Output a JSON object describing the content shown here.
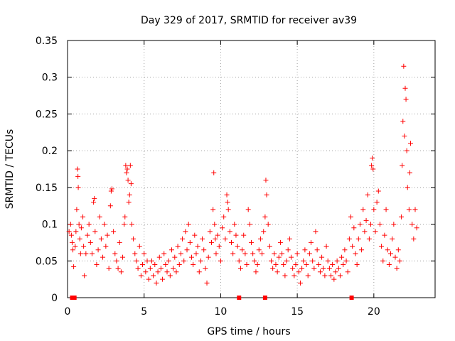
{
  "chart_data": {
    "type": "scatter",
    "title": "Day 329 of 2017, SRMTID for receiver av39",
    "xlabel": "GPS time / hours",
    "ylabel": "SRMTID / TECUs",
    "xlim": [
      0,
      24
    ],
    "ylim": [
      0,
      0.35
    ],
    "xticks": [
      0,
      5,
      10,
      15,
      20
    ],
    "xtick_labels": [
      "0",
      "5",
      "10",
      "15",
      "20"
    ],
    "yticks": [
      0,
      0.05,
      0.1,
      0.15,
      0.2,
      0.25,
      0.3,
      0.35
    ],
    "ytick_labels": [
      "0",
      "0.05",
      "0.1",
      "0.15",
      "0.2",
      "0.25",
      "0.3",
      "0.35"
    ],
    "grid": true,
    "marker": "+",
    "color": "#ff0000",
    "series": [
      {
        "name": "SRMTID",
        "points": [
          [
            0.1,
            0.09
          ],
          [
            0.2,
            0.1
          ],
          [
            0.25,
            0.085
          ],
          [
            0.3,
            0.075
          ],
          [
            0.35,
            0.065
          ],
          [
            0.4,
            0.042
          ],
          [
            0.5,
            0.07
          ],
          [
            0.55,
            0.09
          ],
          [
            0.6,
            0.12
          ],
          [
            0.65,
            0.175
          ],
          [
            0.68,
            0.165
          ],
          [
            0.7,
            0.15
          ],
          [
            0.75,
            0.1
          ],
          [
            0.8,
            0.08
          ],
          [
            0.85,
            0.06
          ],
          [
            0.9,
            0.095
          ],
          [
            1.0,
            0.11
          ],
          [
            1.05,
            0.07
          ],
          [
            1.1,
            0.03
          ],
          [
            1.2,
            0.06
          ],
          [
            1.3,
            0.085
          ],
          [
            1.4,
            0.1
          ],
          [
            1.5,
            0.075
          ],
          [
            1.6,
            0.06
          ],
          [
            1.7,
            0.13
          ],
          [
            1.75,
            0.135
          ],
          [
            1.8,
            0.09
          ],
          [
            1.9,
            0.045
          ],
          [
            2.0,
            0.065
          ],
          [
            2.1,
            0.11
          ],
          [
            2.2,
            0.08
          ],
          [
            2.3,
            0.055
          ],
          [
            2.4,
            0.1
          ],
          [
            2.5,
            0.07
          ],
          [
            2.6,
            0.085
          ],
          [
            2.7,
            0.04
          ],
          [
            2.8,
            0.125
          ],
          [
            2.85,
            0.145
          ],
          [
            2.9,
            0.148
          ],
          [
            3.0,
            0.09
          ],
          [
            3.1,
            0.06
          ],
          [
            3.2,
            0.05
          ],
          [
            3.3,
            0.04
          ],
          [
            3.4,
            0.075
          ],
          [
            3.5,
            0.035
          ],
          [
            3.6,
            0.055
          ],
          [
            3.7,
            0.1
          ],
          [
            3.75,
            0.11
          ],
          [
            3.8,
            0.18
          ],
          [
            3.85,
            0.17
          ],
          [
            3.9,
            0.175
          ],
          [
            3.95,
            0.16
          ],
          [
            4.0,
            0.13
          ],
          [
            4.05,
            0.14
          ],
          [
            4.1,
            0.18
          ],
          [
            4.15,
            0.155
          ],
          [
            4.2,
            0.1
          ],
          [
            4.3,
            0.08
          ],
          [
            4.4,
            0.06
          ],
          [
            4.5,
            0.05
          ],
          [
            4.6,
            0.04
          ],
          [
            4.7,
            0.07
          ],
          [
            4.8,
            0.03
          ],
          [
            4.9,
            0.045
          ],
          [
            5.0,
            0.06
          ],
          [
            5.1,
            0.035
          ],
          [
            5.2,
            0.05
          ],
          [
            5.3,
            0.025
          ],
          [
            5.4,
            0.04
          ],
          [
            5.5,
            0.05
          ],
          [
            5.6,
            0.03
          ],
          [
            5.7,
            0.045
          ],
          [
            5.8,
            0.02
          ],
          [
            5.9,
            0.035
          ],
          [
            6.0,
            0.055
          ],
          [
            6.1,
            0.04
          ],
          [
            6.2,
            0.025
          ],
          [
            6.3,
            0.06
          ],
          [
            6.4,
            0.045
          ],
          [
            6.5,
            0.035
          ],
          [
            6.6,
            0.05
          ],
          [
            6.7,
            0.03
          ],
          [
            6.8,
            0.065
          ],
          [
            6.9,
            0.04
          ],
          [
            7.0,
            0.055
          ],
          [
            7.1,
            0.035
          ],
          [
            7.2,
            0.07
          ],
          [
            7.3,
            0.045
          ],
          [
            7.4,
            0.06
          ],
          [
            7.5,
            0.08
          ],
          [
            7.6,
            0.05
          ],
          [
            7.7,
            0.09
          ],
          [
            7.8,
            0.065
          ],
          [
            7.9,
            0.1
          ],
          [
            8.0,
            0.075
          ],
          [
            8.1,
            0.055
          ],
          [
            8.2,
            0.045
          ],
          [
            8.3,
            0.085
          ],
          [
            8.4,
            0.06
          ],
          [
            8.5,
            0.07
          ],
          [
            8.6,
            0.035
          ],
          [
            8.7,
            0.05
          ],
          [
            8.8,
            0.08
          ],
          [
            8.9,
            0.065
          ],
          [
            9.0,
            0.04
          ],
          [
            9.1,
            0.02
          ],
          [
            9.2,
            0.055
          ],
          [
            9.3,
            0.09
          ],
          [
            9.4,
            0.075
          ],
          [
            9.5,
            0.12
          ],
          [
            9.55,
            0.17
          ],
          [
            9.6,
            0.1
          ],
          [
            9.65,
            0.08
          ],
          [
            9.7,
            0.06
          ],
          [
            9.8,
            0.085
          ],
          [
            9.9,
            0.07
          ],
          [
            10.0,
            0.05
          ],
          [
            10.1,
            0.095
          ],
          [
            10.2,
            0.11
          ],
          [
            10.3,
            0.08
          ],
          [
            10.4,
            0.14
          ],
          [
            10.45,
            0.13
          ],
          [
            10.5,
            0.12
          ],
          [
            10.6,
            0.09
          ],
          [
            10.7,
            0.075
          ],
          [
            10.8,
            0.06
          ],
          [
            10.9,
            0.1
          ],
          [
            11.0,
            0.085
          ],
          [
            11.1,
            0.07
          ],
          [
            11.2,
            0.05
          ],
          [
            11.3,
            0.04
          ],
          [
            11.4,
            0.065
          ],
          [
            11.5,
            0.085
          ],
          [
            11.6,
            0.06
          ],
          [
            11.7,
            0.045
          ],
          [
            11.8,
            0.12
          ],
          [
            11.9,
            0.1
          ],
          [
            12.0,
            0.075
          ],
          [
            12.1,
            0.06
          ],
          [
            12.2,
            0.05
          ],
          [
            12.3,
            0.035
          ],
          [
            12.4,
            0.045
          ],
          [
            12.5,
            0.065
          ],
          [
            12.6,
            0.08
          ],
          [
            12.7,
            0.06
          ],
          [
            12.8,
            0.09
          ],
          [
            12.9,
            0.11
          ],
          [
            12.95,
            0.16
          ],
          [
            13.0,
            0.14
          ],
          [
            13.1,
            0.1
          ],
          [
            13.2,
            0.07
          ],
          [
            13.3,
            0.05
          ],
          [
            13.4,
            0.04
          ],
          [
            13.5,
            0.06
          ],
          [
            13.6,
            0.045
          ],
          [
            13.7,
            0.035
          ],
          [
            13.8,
            0.055
          ],
          [
            13.9,
            0.075
          ],
          [
            14.0,
            0.06
          ],
          [
            14.1,
            0.045
          ],
          [
            14.2,
            0.03
          ],
          [
            14.3,
            0.05
          ],
          [
            14.4,
            0.065
          ],
          [
            14.5,
            0.08
          ],
          [
            14.6,
            0.055
          ],
          [
            14.7,
            0.04
          ],
          [
            14.8,
            0.03
          ],
          [
            14.9,
            0.045
          ],
          [
            15.0,
            0.06
          ],
          [
            15.1,
            0.035
          ],
          [
            15.2,
            0.02
          ],
          [
            15.3,
            0.04
          ],
          [
            15.4,
            0.05
          ],
          [
            15.5,
            0.065
          ],
          [
            15.6,
            0.045
          ],
          [
            15.7,
            0.03
          ],
          [
            15.8,
            0.06
          ],
          [
            15.9,
            0.075
          ],
          [
            16.0,
            0.05
          ],
          [
            16.1,
            0.04
          ],
          [
            16.2,
            0.09
          ],
          [
            16.3,
            0.065
          ],
          [
            16.4,
            0.045
          ],
          [
            16.5,
            0.035
          ],
          [
            16.6,
            0.055
          ],
          [
            16.7,
            0.04
          ],
          [
            16.8,
            0.03
          ],
          [
            16.9,
            0.07
          ],
          [
            17.0,
            0.05
          ],
          [
            17.1,
            0.04
          ],
          [
            17.2,
            0.03
          ],
          [
            17.3,
            0.045
          ],
          [
            17.4,
            0.025
          ],
          [
            17.5,
            0.035
          ],
          [
            17.6,
            0.05
          ],
          [
            17.7,
            0.04
          ],
          [
            17.8,
            0.03
          ],
          [
            17.9,
            0.055
          ],
          [
            18.0,
            0.045
          ],
          [
            18.1,
            0.065
          ],
          [
            18.2,
            0.05
          ],
          [
            18.3,
            0.035
          ],
          [
            18.4,
            0.08
          ],
          [
            18.5,
            0.11
          ],
          [
            18.6,
            0.07
          ],
          [
            18.7,
            0.095
          ],
          [
            18.8,
            0.06
          ],
          [
            18.9,
            0.045
          ],
          [
            19.0,
            0.08
          ],
          [
            19.1,
            0.1
          ],
          [
            19.2,
            0.065
          ],
          [
            19.3,
            0.12
          ],
          [
            19.4,
            0.09
          ],
          [
            19.5,
            0.105
          ],
          [
            19.6,
            0.14
          ],
          [
            19.7,
            0.08
          ],
          [
            19.8,
            0.1
          ],
          [
            19.85,
            0.18
          ],
          [
            19.9,
            0.19
          ],
          [
            19.95,
            0.175
          ],
          [
            20.0,
            0.12
          ],
          [
            20.1,
            0.09
          ],
          [
            20.2,
            0.13
          ],
          [
            20.3,
            0.145
          ],
          [
            20.4,
            0.1
          ],
          [
            20.5,
            0.07
          ],
          [
            20.6,
            0.05
          ],
          [
            20.7,
            0.085
          ],
          [
            20.8,
            0.12
          ],
          [
            20.9,
            0.065
          ],
          [
            21.0,
            0.045
          ],
          [
            21.1,
            0.06
          ],
          [
            21.2,
            0.08
          ],
          [
            21.3,
            0.1
          ],
          [
            21.4,
            0.055
          ],
          [
            21.5,
            0.04
          ],
          [
            21.6,
            0.065
          ],
          [
            21.7,
            0.05
          ],
          [
            21.8,
            0.11
          ],
          [
            21.85,
            0.18
          ],
          [
            21.9,
            0.24
          ],
          [
            21.95,
            0.315
          ],
          [
            22.0,
            0.22
          ],
          [
            22.05,
            0.285
          ],
          [
            22.1,
            0.27
          ],
          [
            22.15,
            0.2
          ],
          [
            22.2,
            0.15
          ],
          [
            22.3,
            0.12
          ],
          [
            22.35,
            0.17
          ],
          [
            22.4,
            0.21
          ],
          [
            22.5,
            0.1
          ],
          [
            22.6,
            0.08
          ],
          [
            22.7,
            0.12
          ],
          [
            22.8,
            0.095
          ]
        ]
      }
    ],
    "baseline_markers_x": [
      0.3,
      0.45,
      11.2,
      12.9,
      18.55
    ]
  }
}
